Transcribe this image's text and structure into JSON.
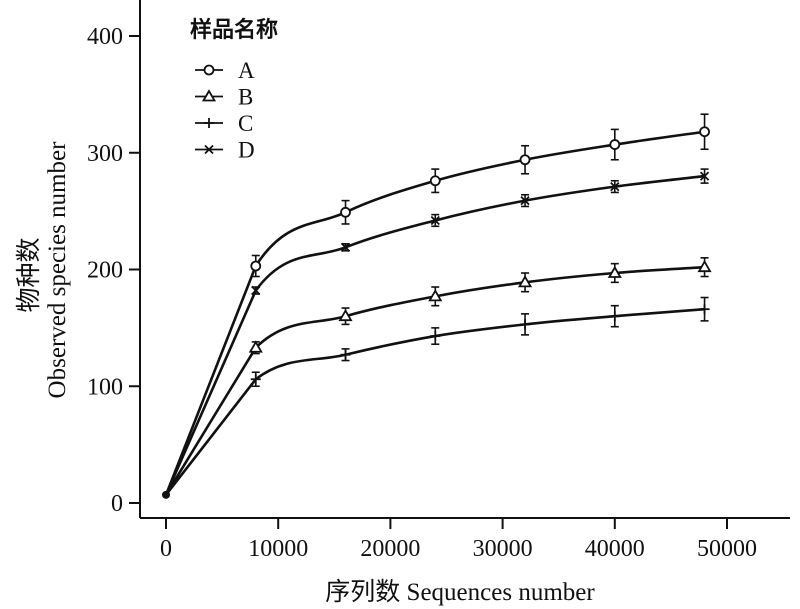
{
  "chart_data": {
    "type": "line",
    "xlabel": "序列数 Sequences number",
    "ylabel_cn": "物种数",
    "ylabel_en": "Observed species number",
    "xlim": [
      0,
      55000
    ],
    "ylim": [
      0,
      420
    ],
    "xticks": [
      0,
      10000,
      20000,
      30000,
      40000,
      50000
    ],
    "xtick_labels": [
      "0",
      "10000",
      "20000",
      "30000",
      "40000",
      "50000"
    ],
    "yticks": [
      0,
      100,
      200,
      300,
      400
    ],
    "ytick_labels": [
      "0",
      "100",
      "200",
      "300",
      "400"
    ],
    "grid": false,
    "legend": {
      "title": "样品名称",
      "position": "top-left"
    },
    "x": [
      0,
      8000,
      16000,
      24000,
      32000,
      40000,
      48000
    ],
    "series": [
      {
        "name": "A",
        "marker": "circle",
        "values": [
          7,
          203,
          249,
          276,
          294,
          307,
          318
        ],
        "errors": [
          0,
          9,
          10,
          10,
          12,
          13,
          15
        ]
      },
      {
        "name": "B",
        "marker": "triangle",
        "values": [
          7,
          133,
          160,
          177,
          189,
          197,
          202
        ],
        "errors": [
          0,
          5,
          7,
          8,
          8,
          8,
          8
        ]
      },
      {
        "name": "C",
        "marker": "plus",
        "values": [
          7,
          106,
          127,
          143,
          153,
          160,
          166
        ],
        "errors": [
          0,
          6,
          5,
          7,
          9,
          9,
          10
        ]
      },
      {
        "name": "D",
        "marker": "x",
        "values": [
          7,
          182,
          219,
          242,
          259,
          271,
          280
        ],
        "errors": [
          0,
          3,
          3,
          5,
          5,
          5,
          6
        ]
      }
    ]
  }
}
